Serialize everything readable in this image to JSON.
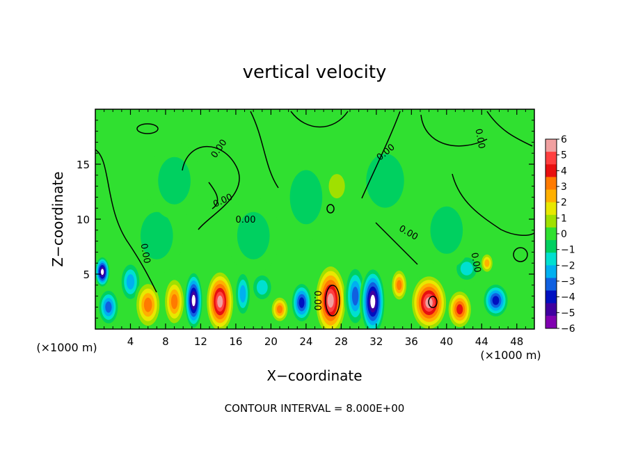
{
  "chart_data": {
    "type": "heatmap",
    "title": "vertical velocity",
    "xlabel": "X−coordinate",
    "ylabel": "Z−coordinate",
    "x_unit": "(×1000 m)",
    "y_unit": "(×1000 m)",
    "xlim": [
      0,
      50
    ],
    "ylim": [
      0,
      20
    ],
    "x_ticks": [
      4,
      8,
      12,
      16,
      20,
      24,
      28,
      32,
      36,
      40,
      44,
      48
    ],
    "y_ticks": [
      5,
      10,
      15
    ],
    "colorbar": {
      "ticks": [
        6,
        5,
        4,
        3,
        2,
        1,
        0,
        -1,
        -2,
        -3,
        -4,
        -5,
        -6
      ],
      "tick_labels": [
        "6",
        "5",
        "4",
        "3",
        "2",
        "1",
        "0",
        "−1",
        "−2",
        "−3",
        "−4",
        "−5",
        "−6"
      ],
      "colors": [
        "#f0a0a0",
        "#ff4040",
        "#e81010",
        "#ff7a00",
        "#ffb000",
        "#e8e800",
        "#a0e000",
        "#30e030",
        "#00d060",
        "#00e0d0",
        "#00b0f0",
        "#1060e0",
        "#0010c0",
        "#4000a0",
        "#8000b0"
      ]
    },
    "contour_label": "0.00",
    "footer": "CONTOUR INTERVAL = 8.000E+00",
    "background_value": 0,
    "blobs": [
      {
        "x": 0.8,
        "z": 5.2,
        "v": -6,
        "w": 0.9,
        "h": 1.5
      },
      {
        "x": 1.5,
        "z": 2.0,
        "v": -4,
        "w": 1.3,
        "h": 1.8
      },
      {
        "x": 4.0,
        "z": 4.3,
        "v": -3,
        "w": 1.3,
        "h": 2.0
      },
      {
        "x": 6.0,
        "z": 2.2,
        "v": 4,
        "w": 1.6,
        "h": 2.3
      },
      {
        "x": 9.0,
        "z": 2.5,
        "v": 4,
        "w": 1.3,
        "h": 2.4
      },
      {
        "x": 11.2,
        "z": 2.6,
        "v": -6,
        "w": 1.1,
        "h": 2.8
      },
      {
        "x": 14.2,
        "z": 2.5,
        "v": 6,
        "w": 1.7,
        "h": 3.0
      },
      {
        "x": 16.8,
        "z": 3.2,
        "v": -3,
        "w": 1.0,
        "h": 2.3
      },
      {
        "x": 19.0,
        "z": 3.8,
        "v": -2,
        "w": 1.4,
        "h": 1.5
      },
      {
        "x": 21.0,
        "z": 1.8,
        "v": 4,
        "w": 1.1,
        "h": 1.3
      },
      {
        "x": 23.5,
        "z": 2.4,
        "v": -5,
        "w": 1.3,
        "h": 2.0
      },
      {
        "x": 26.8,
        "z": 2.6,
        "v": 6,
        "w": 1.9,
        "h": 3.5
      },
      {
        "x": 29.6,
        "z": 3.0,
        "v": -4,
        "w": 1.3,
        "h": 3.0
      },
      {
        "x": 31.6,
        "z": 2.5,
        "v": -6,
        "w": 1.5,
        "h": 3.3
      },
      {
        "x": 34.6,
        "z": 4.0,
        "v": 4,
        "w": 1.0,
        "h": 1.6
      },
      {
        "x": 38.0,
        "z": 2.4,
        "v": 6,
        "w": 2.2,
        "h": 2.7
      },
      {
        "x": 41.5,
        "z": 1.8,
        "v": 5,
        "w": 1.5,
        "h": 1.9
      },
      {
        "x": 45.6,
        "z": 2.6,
        "v": -5,
        "w": 1.6,
        "h": 1.7
      },
      {
        "x": 44.6,
        "z": 6.0,
        "v": 3,
        "w": 0.8,
        "h": 1.0
      },
      {
        "x": 42.3,
        "z": 5.5,
        "v": -2,
        "w": 1.6,
        "h": 1.4
      },
      {
        "x": 7.0,
        "z": 8.5,
        "v": -1,
        "w": 3.0,
        "h": 3.5
      },
      {
        "x": 9.0,
        "z": 13.5,
        "v": -1,
        "w": 3.0,
        "h": 3.5
      },
      {
        "x": 18.0,
        "z": 8.5,
        "v": -1,
        "w": 3.0,
        "h": 3.5
      },
      {
        "x": 24.0,
        "z": 12.0,
        "v": -1,
        "w": 3.0,
        "h": 4.0
      },
      {
        "x": 33.0,
        "z": 13.5,
        "v": -1,
        "w": 3.5,
        "h": 4.0
      },
      {
        "x": 40.0,
        "z": 9.0,
        "v": -1,
        "w": 3.0,
        "h": 3.5
      },
      {
        "x": 27.5,
        "z": 13.0,
        "v": 1,
        "w": 1.5,
        "h": 1.8
      }
    ]
  }
}
